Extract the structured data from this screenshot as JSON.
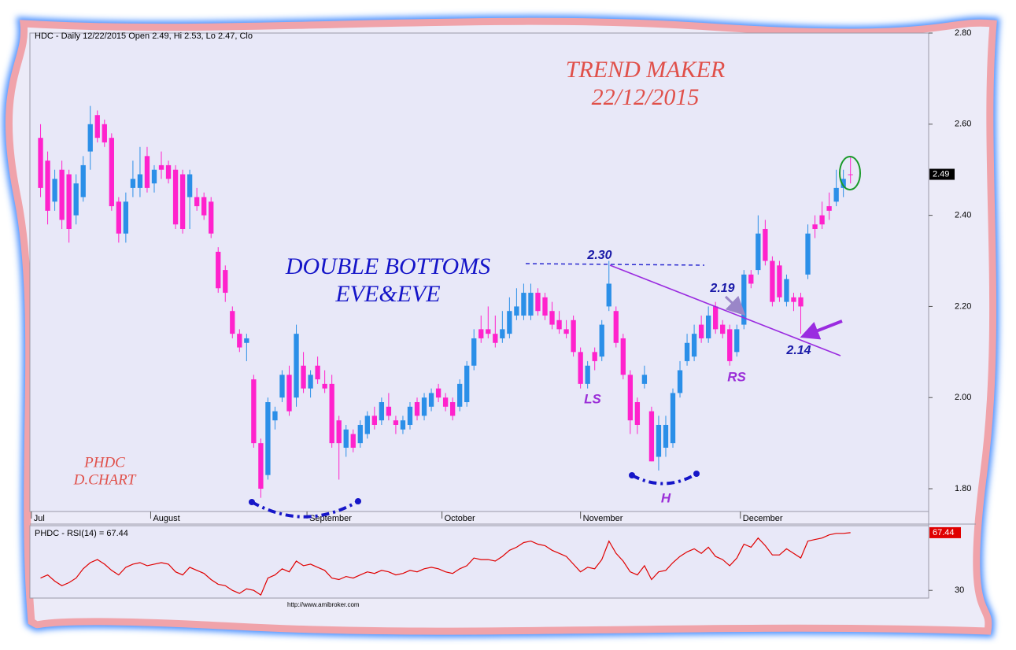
{
  "chart_data": {
    "type": "candlestick",
    "title": "HDC - Daily 12/22/2015 Open 2.49, Hi 2.53, Lo 2.47, Clo",
    "xlim": [
      -1.5,
      125
    ],
    "xticks": [
      {
        "value": -1.3,
        "label": "Jul"
      },
      {
        "value": 15.5,
        "label": "August"
      },
      {
        "value": 37.5,
        "label": "September"
      },
      {
        "value": 56.5,
        "label": "October"
      },
      {
        "value": 76,
        "label": "November"
      },
      {
        "value": 98.5,
        "label": "December"
      }
    ],
    "ylim": [
      1.75,
      2.8
    ],
    "yticks": [
      {
        "value": 1.8,
        "label": "1.80"
      },
      {
        "value": 2.0,
        "label": "2.00"
      },
      {
        "value": 2.2,
        "label": "2.20"
      },
      {
        "value": 2.4,
        "label": "2.40"
      },
      {
        "value": 2.6,
        "label": "2.60"
      },
      {
        "value": 2.8,
        "label": "2.80"
      }
    ],
    "series": [
      {
        "up_color": "#2b8fe8",
        "down_color": "#ff22cc",
        "open": [
          2.57,
          2.52,
          2.43,
          2.5,
          2.49,
          2.4,
          2.44,
          2.54,
          2.62,
          2.6,
          2.57,
          2.43,
          2.36,
          2.46,
          2.46,
          2.53,
          2.47,
          2.51,
          2.51,
          2.5,
          2.49,
          2.44,
          2.44,
          2.44,
          2.43,
          2.32,
          2.28,
          2.19,
          2.14,
          2.12,
          2.04,
          1.9,
          1.83,
          1.95,
          2.0,
          2.05,
          2.0,
          2.07,
          2.02,
          2.07,
          2.03,
          2.03,
          1.95,
          1.89,
          1.92,
          1.9,
          1.92,
          1.96,
          1.95,
          1.98,
          1.95,
          1.93,
          1.94,
          1.99,
          1.96,
          1.98,
          2.02,
          2.0,
          1.99,
          1.98,
          1.99,
          2.07,
          2.15,
          2.15,
          2.14,
          2.13,
          2.14,
          2.18,
          2.18,
          2.18,
          2.23,
          2.22,
          2.19,
          2.17,
          2.15,
          2.17,
          2.1,
          2.03,
          2.1,
          2.09,
          2.2,
          2.19,
          2.13,
          2.05,
          1.99,
          2.03,
          1.97,
          1.87,
          1.89,
          1.9,
          2.01,
          2.08,
          2.09,
          2.16,
          2.13,
          2.2,
          2.16,
          2.15,
          2.1,
          2.16,
          2.27,
          2.28,
          2.37,
          2.3,
          2.29,
          2.21,
          2.22,
          2.22,
          2.27,
          2.38,
          2.4,
          2.42,
          2.43,
          2.46,
          2.49
        ],
        "high": [
          2.6,
          2.54,
          2.5,
          2.52,
          2.5,
          2.49,
          2.53,
          2.64,
          2.63,
          2.61,
          2.58,
          2.44,
          2.45,
          2.52,
          2.55,
          2.55,
          2.51,
          2.54,
          2.52,
          2.51,
          2.5,
          2.5,
          2.46,
          2.45,
          2.44,
          2.33,
          2.29,
          2.2,
          2.15,
          2.14,
          2.05,
          1.91,
          2.0,
          1.98,
          2.06,
          2.07,
          2.16,
          2.1,
          2.06,
          2.09,
          2.06,
          2.05,
          1.96,
          1.94,
          1.93,
          1.95,
          1.97,
          1.98,
          2.0,
          2.01,
          1.96,
          1.96,
          1.99,
          2.0,
          2.01,
          2.02,
          2.03,
          2.01,
          2.0,
          2.04,
          2.08,
          2.15,
          2.18,
          2.2,
          2.18,
          2.19,
          2.22,
          2.24,
          2.25,
          2.25,
          2.24,
          2.23,
          2.21,
          2.19,
          2.17,
          2.18,
          2.11,
          2.08,
          2.11,
          2.17,
          2.3,
          2.2,
          2.14,
          2.06,
          2.0,
          2.07,
          1.98,
          1.96,
          1.96,
          2.02,
          2.08,
          2.14,
          2.16,
          2.18,
          2.2,
          2.21,
          2.17,
          2.16,
          2.16,
          2.28,
          2.28,
          2.4,
          2.39,
          2.31,
          2.3,
          2.27,
          2.23,
          2.23,
          2.38,
          2.4,
          2.43,
          2.45,
          2.5,
          2.5,
          2.53
        ],
        "low": [
          2.44,
          2.38,
          2.41,
          2.37,
          2.34,
          2.38,
          2.43,
          2.5,
          2.56,
          2.55,
          2.41,
          2.34,
          2.34,
          2.44,
          2.44,
          2.45,
          2.45,
          2.48,
          2.47,
          2.37,
          2.36,
          2.37,
          2.41,
          2.39,
          2.35,
          2.23,
          2.21,
          2.13,
          2.1,
          2.08,
          1.89,
          1.78,
          1.82,
          1.93,
          1.99,
          1.96,
          1.98,
          2.01,
          2.0,
          2.03,
          2.01,
          1.89,
          1.82,
          1.87,
          1.88,
          1.89,
          1.91,
          1.93,
          1.94,
          1.95,
          1.92,
          1.92,
          1.93,
          1.95,
          1.95,
          1.97,
          1.99,
          1.97,
          1.95,
          1.97,
          1.98,
          2.06,
          2.12,
          2.13,
          2.11,
          2.12,
          2.13,
          2.17,
          2.17,
          2.17,
          2.18,
          2.17,
          2.15,
          2.14,
          2.13,
          2.09,
          2.02,
          2.02,
          2.06,
          2.08,
          2.19,
          2.11,
          2.04,
          1.92,
          1.92,
          2.02,
          1.86,
          1.84,
          1.87,
          1.89,
          2.0,
          2.07,
          2.08,
          2.12,
          2.12,
          2.14,
          2.13,
          2.07,
          2.09,
          2.15,
          2.24,
          2.27,
          2.29,
          2.2,
          2.21,
          2.2,
          2.19,
          2.14,
          2.26,
          2.35,
          2.37,
          2.39,
          2.42,
          2.44,
          2.47
        ],
        "close": [
          2.46,
          2.41,
          2.48,
          2.39,
          2.37,
          2.47,
          2.51,
          2.6,
          2.57,
          2.56,
          2.42,
          2.36,
          2.43,
          2.48,
          2.49,
          2.46,
          2.5,
          2.5,
          2.48,
          2.38,
          2.37,
          2.49,
          2.42,
          2.4,
          2.36,
          2.24,
          2.23,
          2.14,
          2.11,
          2.13,
          1.9,
          1.8,
          1.99,
          1.97,
          2.05,
          1.97,
          2.14,
          2.02,
          2.05,
          2.04,
          2.02,
          1.9,
          1.9,
          1.93,
          1.89,
          1.94,
          1.96,
          1.94,
          1.99,
          1.96,
          1.94,
          1.95,
          1.98,
          1.96,
          2.0,
          2.01,
          2.0,
          1.98,
          1.96,
          2.03,
          2.07,
          2.13,
          2.13,
          2.14,
          2.12,
          2.15,
          2.19,
          2.2,
          2.23,
          2.23,
          2.19,
          2.18,
          2.16,
          2.15,
          2.14,
          2.1,
          2.03,
          2.07,
          2.08,
          2.16,
          2.25,
          2.12,
          2.05,
          1.95,
          1.94,
          2.05,
          1.86,
          1.94,
          1.94,
          2.01,
          2.06,
          2.12,
          2.14,
          2.13,
          2.18,
          2.15,
          2.14,
          2.08,
          2.15,
          2.27,
          2.25,
          2.36,
          2.3,
          2.21,
          2.22,
          2.26,
          2.21,
          2.2,
          2.36,
          2.37,
          2.38,
          2.41,
          2.46,
          2.48,
          2.49
        ]
      }
    ],
    "rsi": {
      "label": "PHDC - RSI(14) = 67.44",
      "color": "#e00000",
      "ylim": [
        25,
        72
      ],
      "yticks": [
        30
      ],
      "values": [
        38,
        40,
        36,
        33,
        35,
        38,
        44,
        48,
        50,
        47,
        43,
        40,
        45,
        47,
        48,
        46,
        47,
        48,
        47,
        42,
        40,
        45,
        43,
        41,
        37,
        34,
        33,
        30,
        28,
        31,
        30,
        27,
        38,
        40,
        44,
        42,
        49,
        46,
        47,
        45,
        43,
        38,
        37,
        39,
        38,
        40,
        42,
        41,
        43,
        42,
        40,
        41,
        43,
        42,
        44,
        45,
        44,
        42,
        41,
        44,
        46,
        51,
        50,
        50,
        49,
        52,
        56,
        58,
        61,
        62,
        60,
        59,
        56,
        54,
        52,
        47,
        42,
        45,
        44,
        50,
        62,
        54,
        49,
        42,
        40,
        46,
        37,
        42,
        43,
        48,
        52,
        55,
        57,
        54,
        58,
        52,
        50,
        46,
        51,
        60,
        58,
        64,
        59,
        53,
        53,
        57,
        54,
        51,
        62,
        63,
        64,
        66,
        67,
        67,
        67.44
      ]
    },
    "annotations": [
      "TREND MAKER",
      "22/12/2015",
      "DOUBLE BOTTOMS",
      "EVE&EVE",
      "PHDC",
      "D.CHART",
      "2.30",
      "2.19",
      "2.14",
      "LS",
      "H",
      "RS"
    ],
    "source": "http://www.amibroker.com"
  }
}
